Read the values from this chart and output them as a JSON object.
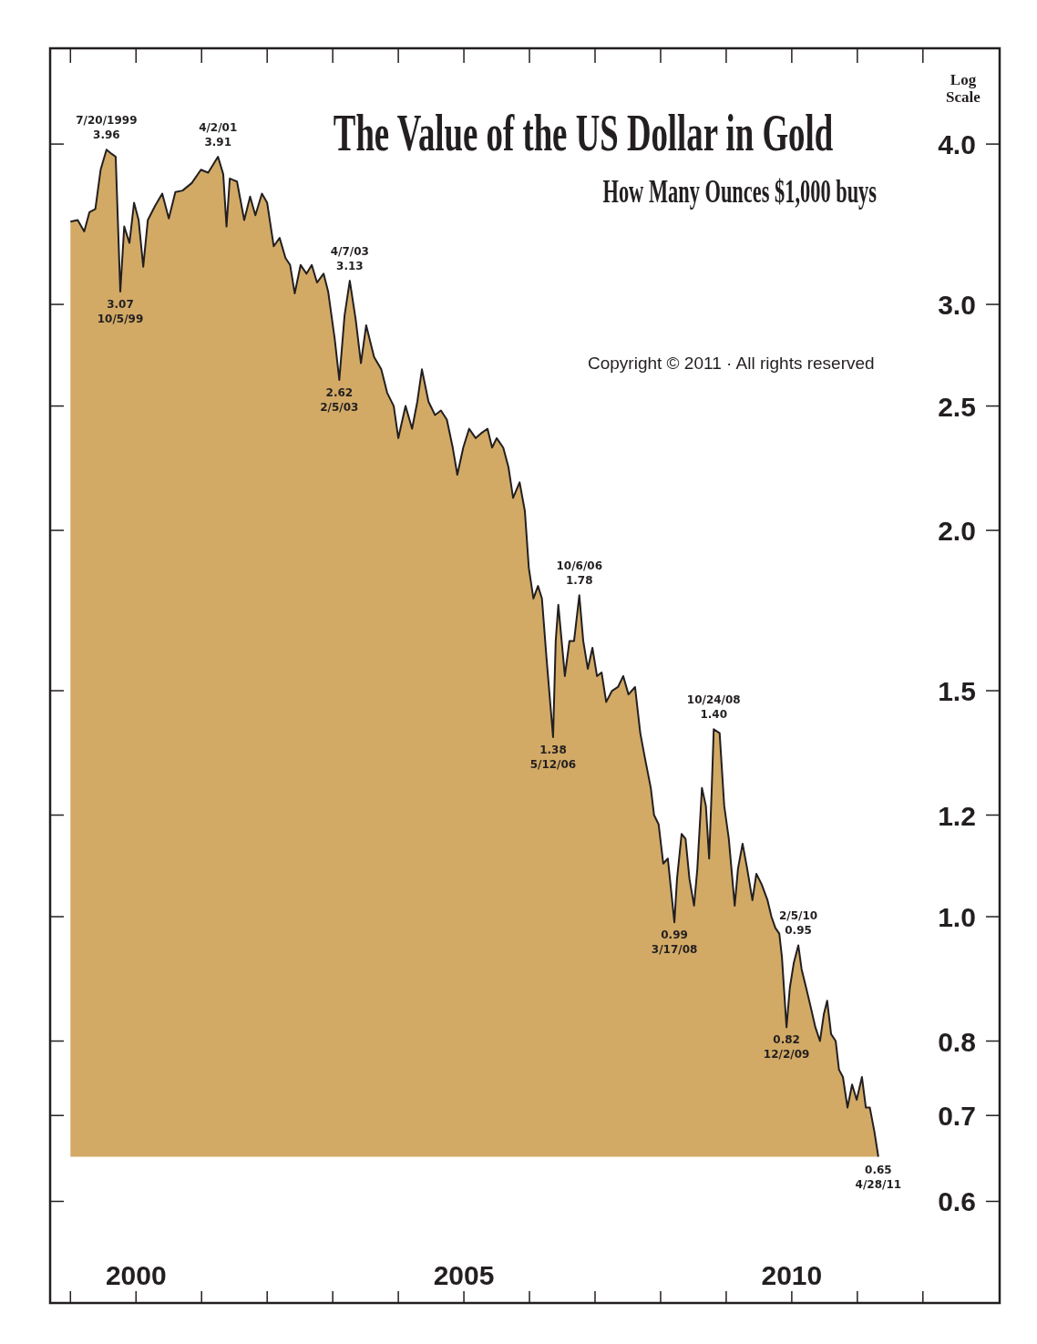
{
  "chart_data": {
    "type": "area",
    "title": "The Value of the US Dollar in Gold",
    "subtitle": "How Many Ounces $1,000 buys",
    "log": "y",
    "x": [
      1999.0,
      1999.11,
      1999.21,
      1999.29,
      1999.38,
      1999.46,
      1999.55,
      1999.63,
      1999.69,
      1999.76,
      1999.82,
      1999.9,
      1999.97,
      2000.04,
      2000.11,
      2000.18,
      2000.29,
      2000.4,
      2000.5,
      2000.6,
      2000.71,
      2000.85,
      2000.99,
      2001.1,
      2001.25,
      2001.33,
      2001.38,
      2001.43,
      2001.54,
      2001.65,
      2001.74,
      2001.82,
      2001.92,
      2002.0,
      2002.1,
      2002.19,
      2002.28,
      2002.35,
      2002.42,
      2002.51,
      2002.6,
      2002.68,
      2002.76,
      2002.86,
      2002.93,
      2003.03,
      2003.1,
      2003.18,
      2003.26,
      2003.35,
      2003.43,
      2003.51,
      2003.63,
      2003.74,
      2003.83,
      2003.93,
      2004.0,
      2004.11,
      2004.21,
      2004.29,
      2004.36,
      2004.46,
      2004.56,
      2004.65,
      2004.74,
      2004.83,
      2004.9,
      2004.99,
      2005.08,
      2005.18,
      2005.26,
      2005.36,
      2005.43,
      2005.5,
      2005.6,
      2005.68,
      2005.75,
      2005.85,
      2005.93,
      2005.99,
      2006.06,
      2006.13,
      2006.19,
      2006.26,
      2006.36,
      2006.4,
      2006.44,
      2006.54,
      2006.61,
      2006.68,
      2006.76,
      2006.82,
      2006.89,
      2006.96,
      2007.03,
      2007.1,
      2007.17,
      2007.26,
      2007.35,
      2007.43,
      2007.51,
      2007.61,
      2007.69,
      2007.76,
      2007.85,
      2007.9,
      2007.97,
      2008.04,
      2008.11,
      2008.21,
      2008.25,
      2008.32,
      2008.38,
      2008.44,
      2008.51,
      2008.56,
      2008.63,
      2008.69,
      2008.74,
      2008.78,
      2008.81,
      2008.9,
      2008.97,
      2009.04,
      2009.13,
      2009.18,
      2009.25,
      2009.32,
      2009.4,
      2009.46,
      2009.54,
      2009.63,
      2009.69,
      2009.75,
      2009.81,
      2009.85,
      2009.92,
      2009.97,
      2010.03,
      2010.1,
      2010.15,
      2010.22,
      2010.29,
      2010.36,
      2010.43,
      2010.49,
      2010.54,
      2010.6,
      2010.67,
      2010.72,
      2010.78,
      2010.85,
      2010.92,
      2010.99,
      2011.07,
      2011.13,
      2011.19,
      2011.26,
      2011.32
    ],
    "series": [
      {
        "color": "#d2aa66",
        "values": [
          3.48,
          3.49,
          3.42,
          3.54,
          3.56,
          3.82,
          3.96,
          3.93,
          3.91,
          3.07,
          3.45,
          3.35,
          3.6,
          3.49,
          3.21,
          3.49,
          3.58,
          3.66,
          3.5,
          3.67,
          3.68,
          3.73,
          3.82,
          3.8,
          3.91,
          3.79,
          3.45,
          3.76,
          3.74,
          3.49,
          3.64,
          3.52,
          3.66,
          3.6,
          3.33,
          3.38,
          3.26,
          3.22,
          3.06,
          3.22,
          3.17,
          3.22,
          3.12,
          3.17,
          3.07,
          2.82,
          2.62,
          2.94,
          3.13,
          2.92,
          2.7,
          2.89,
          2.73,
          2.67,
          2.56,
          2.5,
          2.36,
          2.5,
          2.4,
          2.52,
          2.67,
          2.52,
          2.46,
          2.48,
          2.44,
          2.32,
          2.21,
          2.32,
          2.4,
          2.36,
          2.38,
          2.4,
          2.32,
          2.36,
          2.32,
          2.24,
          2.12,
          2.18,
          2.07,
          1.87,
          1.77,
          1.81,
          1.77,
          1.59,
          1.38,
          1.64,
          1.75,
          1.54,
          1.64,
          1.64,
          1.78,
          1.64,
          1.56,
          1.62,
          1.54,
          1.55,
          1.47,
          1.5,
          1.51,
          1.54,
          1.49,
          1.51,
          1.39,
          1.33,
          1.26,
          1.2,
          1.18,
          1.1,
          1.11,
          0.99,
          1.07,
          1.16,
          1.15,
          1.07,
          1.02,
          1.09,
          1.26,
          1.22,
          1.11,
          1.26,
          1.4,
          1.39,
          1.22,
          1.15,
          1.02,
          1.09,
          1.14,
          1.09,
          1.03,
          1.08,
          1.06,
          1.03,
          1.0,
          0.98,
          0.97,
          0.93,
          0.82,
          0.88,
          0.92,
          0.95,
          0.91,
          0.88,
          0.85,
          0.82,
          0.8,
          0.84,
          0.86,
          0.81,
          0.8,
          0.76,
          0.75,
          0.71,
          0.74,
          0.72,
          0.75,
          0.71,
          0.71,
          0.68,
          0.65
        ]
      }
    ],
    "xlim": [
      1998.69,
      2013.17
    ],
    "ylim": [
      0.5,
      4.75
    ],
    "xticks": [
      {
        "value": 1999,
        "label": null
      },
      {
        "value": 2000,
        "label": "2000"
      },
      {
        "value": 2001,
        "label": null
      },
      {
        "value": 2002,
        "label": null
      },
      {
        "value": 2003,
        "label": null
      },
      {
        "value": 2004,
        "label": null
      },
      {
        "value": 2005,
        "label": "2005"
      },
      {
        "value": 2006,
        "label": null
      },
      {
        "value": 2007,
        "label": null
      },
      {
        "value": 2008,
        "label": null
      },
      {
        "value": 2009,
        "label": null
      },
      {
        "value": 2010,
        "label": "2010"
      },
      {
        "value": 2011,
        "label": null
      },
      {
        "value": 2012,
        "label": null
      }
    ],
    "yticks": [
      {
        "value": 0.6,
        "label": "0.6"
      },
      {
        "value": 0.7,
        "label": "0.7"
      },
      {
        "value": 0.8,
        "label": "0.8"
      },
      {
        "value": 1.0,
        "label": "1.0"
      },
      {
        "value": 1.2,
        "label": "1.2"
      },
      {
        "value": 1.5,
        "label": "1.5"
      },
      {
        "value": 2.0,
        "label": "2.0"
      },
      {
        "value": 2.5,
        "label": "2.5"
      },
      {
        "value": 3.0,
        "label": "3.0"
      },
      {
        "value": 4.0,
        "label": "4.0"
      }
    ],
    "annotations": [
      {
        "text": "7/20/1999\n3.96",
        "x": 1999.55,
        "y": 3.96
      },
      {
        "text": "3.07\n10/5/99",
        "x": 1999.76,
        "y": 3.07
      },
      {
        "text": "4/2/01\n3.91",
        "x": 2001.25,
        "y": 3.91
      },
      {
        "text": "2.62\n2/5/03",
        "x": 2003.1,
        "y": 2.62
      },
      {
        "text": "4/7/03\n3.13",
        "x": 2003.26,
        "y": 3.13
      },
      {
        "text": "1.38\n5/12/06",
        "x": 2006.36,
        "y": 1.38
      },
      {
        "text": "10/6/06\n1.78",
        "x": 2006.76,
        "y": 1.78
      },
      {
        "text": "0.99\n3/17/08",
        "x": 2008.21,
        "y": 0.99
      },
      {
        "text": "10/24/08\n1.40",
        "x": 2008.81,
        "y": 1.4
      },
      {
        "text": "0.82\n12/2/09",
        "x": 2009.92,
        "y": 0.82
      },
      {
        "text": "2/5/10\n0.95",
        "x": 2010.1,
        "y": 0.95
      },
      {
        "text": "0.65\n4/28/11",
        "x": 2011.32,
        "y": 0.65
      },
      "Log\nScale",
      "Copyright © 2011 · All rights reserved"
    ]
  }
}
